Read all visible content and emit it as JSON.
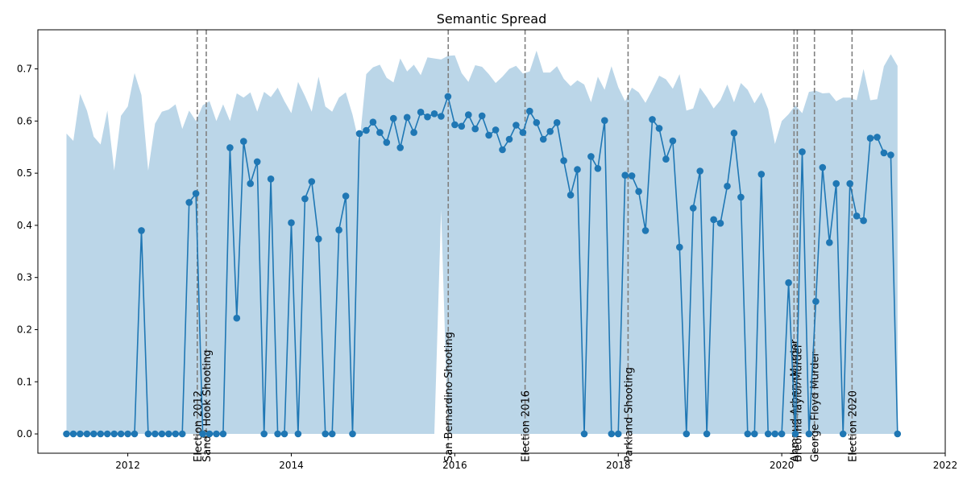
{
  "chart_data": {
    "type": "line",
    "title": "Semantic Spread",
    "xlabel": "",
    "ylabel": "",
    "x_start": "2011-04",
    "xlim": [
      2010.9,
      2022.0
    ],
    "ylim": [
      -0.037,
      0.775
    ],
    "x_ticks": [
      2012,
      2014,
      2016,
      2018,
      2020,
      2022
    ],
    "y_ticks": [
      0.0,
      0.1,
      0.2,
      0.3,
      0.4,
      0.5,
      0.6,
      0.7
    ],
    "grid": false,
    "series_color": "#1f77b4",
    "band_color": "#1f77b4",
    "event_line_color": "#808080",
    "values": [
      0,
      0,
      0,
      0,
      0,
      0,
      0,
      0,
      0,
      0,
      0,
      0.39,
      0,
      0,
      0,
      0,
      0,
      0,
      0.444,
      0.461,
      0,
      0,
      0,
      0,
      0.549,
      0.222,
      0.561,
      0.48,
      0.522,
      0,
      0.489,
      0,
      0,
      0.405,
      0,
      0.451,
      0.484,
      0.374,
      0,
      0,
      0.391,
      0.456,
      0,
      0.576,
      0.582,
      0.598,
      0.578,
      0.559,
      0.605,
      0.549,
      0.607,
      0.578,
      0.617,
      0.608,
      0.614,
      0.609,
      0.647,
      0.593,
      0.59,
      0.612,
      0.585,
      0.61,
      0.573,
      0.583,
      0.545,
      0.565,
      0.592,
      0.578,
      0.619,
      0.597,
      0.565,
      0.58,
      0.597,
      0.524,
      0.458,
      0.507,
      0,
      0.532,
      0.509,
      0.601,
      0,
      0,
      0.496,
      0.495,
      0.465,
      0.39,
      0.603,
      0.586,
      0.527,
      0.562,
      0.358,
      0,
      0.433,
      0.504,
      0,
      0.411,
      0.404,
      0.475,
      0.577,
      0.454,
      0,
      0,
      0.498,
      0,
      0,
      0,
      0.29,
      0,
      0.541,
      0,
      0.254,
      0.511,
      0.367,
      0.48,
      0,
      0.48,
      0.418,
      0.409,
      0.567,
      0.569,
      0.539,
      0.535,
      0
    ],
    "band_upper": [
      0.576,
      0.562,
      0.652,
      0.62,
      0.57,
      0.555,
      0.62,
      0.505,
      0.61,
      0.628,
      0.692,
      0.65,
      0.505,
      0.595,
      0.618,
      0.622,
      0.632,
      0.585,
      0.62,
      0.6,
      0.63,
      0.638,
      0.6,
      0.632,
      0.6,
      0.653,
      0.645,
      0.655,
      0.618,
      0.656,
      0.646,
      0.664,
      0.638,
      0.615,
      0.675,
      0.648,
      0.618,
      0.685,
      0.628,
      0.618,
      0.645,
      0.655,
      0.612,
      0.555,
      0.69,
      0.703,
      0.708,
      0.683,
      0.674,
      0.72,
      0.695,
      0.708,
      0.688,
      0.722,
      0.72,
      0.718,
      0.725,
      0.726,
      0.692,
      0.675,
      0.707,
      0.704,
      0.69,
      0.673,
      0.685,
      0.7,
      0.706,
      0.691,
      0.695,
      0.735,
      0.693,
      0.693,
      0.705,
      0.681,
      0.667,
      0.678,
      0.67,
      0.636,
      0.685,
      0.66,
      0.705,
      0.665,
      0.638,
      0.664,
      0.655,
      0.635,
      0.66,
      0.687,
      0.68,
      0.662,
      0.69,
      0.62,
      0.624,
      0.664,
      0.646,
      0.624,
      0.64,
      0.67,
      0.636,
      0.673,
      0.66,
      0.634,
      0.655,
      0.623,
      0.556,
      0.6,
      0.613,
      0.63,
      0.615,
      0.656,
      0.658,
      0.653,
      0.654,
      0.638,
      0.645,
      0.645,
      0.64,
      0.7,
      0.64,
      0.642,
      0.705,
      0.728,
      0.706,
      0.67,
      0.45
    ],
    "band_lower": [
      0,
      0,
      0,
      0,
      0,
      0,
      0,
      0,
      0,
      0,
      0,
      0,
      0,
      0,
      0,
      0,
      0,
      0,
      0,
      0,
      0,
      0,
      0,
      0,
      0,
      0,
      0,
      0,
      0,
      0,
      0,
      0,
      0,
      0,
      0,
      0,
      0,
      0,
      0,
      0,
      0,
      0,
      0,
      0,
      0,
      0,
      0,
      0,
      0,
      0,
      0,
      0,
      0,
      0,
      0,
      0.43,
      0,
      0,
      0,
      0,
      0,
      0,
      0,
      0,
      0,
      0,
      0,
      0,
      0,
      0,
      0,
      0,
      0,
      0,
      0,
      0,
      0,
      0,
      0,
      0,
      0,
      0,
      0,
      0,
      0,
      0,
      0,
      0,
      0,
      0,
      0,
      0,
      0,
      0,
      0,
      0,
      0,
      0,
      0,
      0,
      0,
      0,
      0,
      0,
      0,
      0,
      0,
      0,
      0,
      0,
      0,
      0,
      0,
      0,
      0,
      0,
      0,
      0,
      0,
      0,
      0,
      0,
      0,
      0,
      0
    ],
    "events": [
      {
        "label": "Election 2012",
        "x": 2012.85
      },
      {
        "label": "Sandy Hook Shooting",
        "x": 2012.96
      },
      {
        "label": "San Bernardino Shooting",
        "x": 2015.92
      },
      {
        "label": "Election 2016",
        "x": 2016.86
      },
      {
        "label": "Parkland Shooting",
        "x": 2018.12
      },
      {
        "label": "Ahmaud Arbery Murder",
        "x": 2020.15
      },
      {
        "label": "Breonna Taylor Murder",
        "x": 2020.19
      },
      {
        "label": "George Floyd Murder",
        "x": 2020.4
      },
      {
        "label": "Election 2020",
        "x": 2020.86
      }
    ]
  }
}
